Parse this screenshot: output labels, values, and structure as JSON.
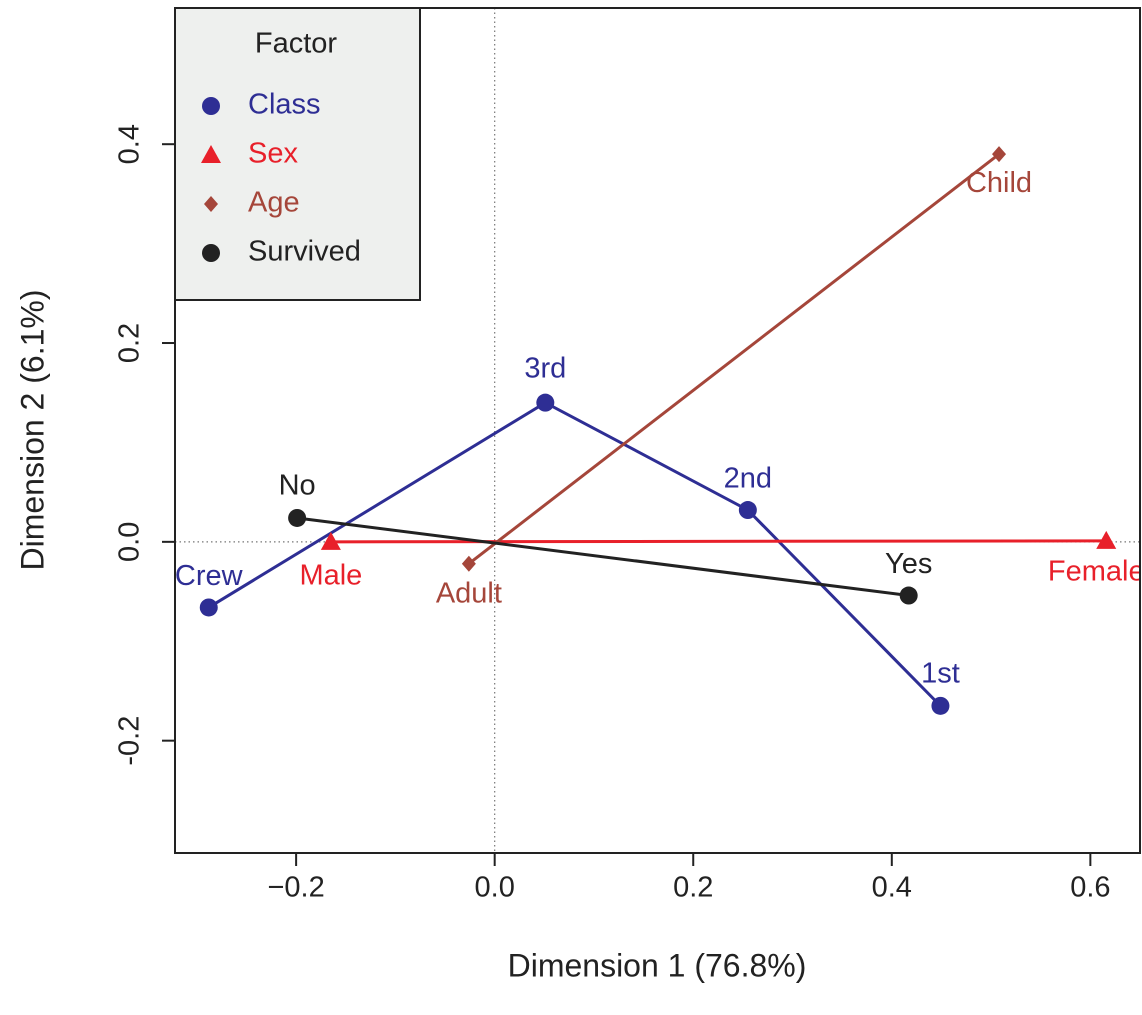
{
  "chart_data": {
    "type": "scatter",
    "xlabel": "Dimension 1 (76.8%)",
    "ylabel": "Dimension 2 (6.1%)",
    "xlim": [
      -0.322,
      0.65
    ],
    "ylim": [
      -0.313,
      0.537
    ],
    "xticks": [
      {
        "value": -0.2,
        "label": "−0.2"
      },
      {
        "value": 0.0,
        "label": "0.0"
      },
      {
        "value": 0.2,
        "label": "0.2"
      },
      {
        "value": 0.4,
        "label": "0.4"
      },
      {
        "value": 0.6,
        "label": "0.6"
      }
    ],
    "yticks": [
      {
        "value": -0.2,
        "label": "-0.2"
      },
      {
        "value": 0.0,
        "label": "0.0"
      },
      {
        "value": 0.2,
        "label": "0.2"
      },
      {
        "value": 0.4,
        "label": "0.4"
      }
    ],
    "legend_title": "Factor",
    "legend_position": "upper left",
    "series": [
      {
        "name": "Class",
        "color": "#2e2e94",
        "marker": "circle",
        "labels": [
          "Crew",
          "3rd",
          "2nd",
          "1st"
        ],
        "x": [
          -0.288,
          0.051,
          0.255,
          0.449
        ],
        "values": [
          -0.066,
          0.14,
          0.032,
          -0.165
        ]
      },
      {
        "name": "Sex",
        "color": "#e8202a",
        "marker": "triangle",
        "labels": [
          "Male",
          "Female"
        ],
        "x": [
          -0.165,
          0.616
        ],
        "values": [
          0.0,
          0.001
        ]
      },
      {
        "name": "Age",
        "color": "#a5463a",
        "marker": "diamond",
        "labels": [
          "Adult",
          "Child"
        ],
        "x": [
          -0.026,
          0.508
        ],
        "values": [
          -0.022,
          0.39
        ]
      },
      {
        "name": "Survived",
        "color": "#222222",
        "marker": "circle",
        "labels": [
          "No",
          "Yes"
        ],
        "x": [
          -0.199,
          0.417
        ],
        "values": [
          0.024,
          -0.054
        ]
      }
    ]
  }
}
